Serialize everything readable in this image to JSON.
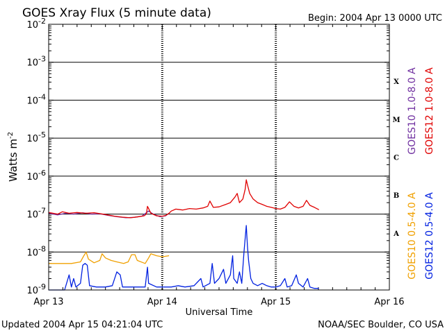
{
  "chart_data": {
    "type": "line",
    "title": "GOES Xray Flux (5 minute data)",
    "begin_label": "Begin:  2004 Apr 13 0000 UTC",
    "xlabel": "Universal Time",
    "ylabel": "Watts m",
    "ylabel_sup": "-2",
    "x_ticks": [
      "Apr 13",
      "Apr 14",
      "Apr 15",
      "Apr 16"
    ],
    "x_range_days": [
      0,
      3
    ],
    "y_scale": "log",
    "ylim": [
      1e-09,
      0.01
    ],
    "y_ticks": [
      {
        "base": "10",
        "exp": "-2"
      },
      {
        "base": "10",
        "exp": "-3"
      },
      {
        "base": "10",
        "exp": "-4"
      },
      {
        "base": "10",
        "exp": "-5"
      },
      {
        "base": "10",
        "exp": "-6"
      },
      {
        "base": "10",
        "exp": "-7"
      },
      {
        "base": "10",
        "exp": "-8"
      },
      {
        "base": "10",
        "exp": "-9"
      }
    ],
    "flare_classes": [
      "X",
      "M",
      "C",
      "B",
      "A"
    ],
    "grid": true,
    "legend_placement": "right",
    "series": [
      {
        "name": "GOES10 1.0-8.0 A",
        "color": "#7030a0",
        "points": [
          [
            0.0,
            1.05e-07
          ],
          [
            0.08,
            9.5e-08
          ],
          [
            0.15,
            1.05e-07
          ],
          [
            0.22,
            1e-07
          ],
          [
            0.3,
            1.08e-07
          ],
          [
            0.38,
            1e-07
          ],
          [
            0.45,
            1.02e-07
          ],
          [
            0.52,
            9.3e-08
          ],
          [
            0.6,
            8.5e-08
          ],
          [
            0.68,
            8e-08
          ],
          [
            0.75,
            8.2e-08
          ],
          [
            0.82,
            8.8e-08
          ],
          [
            0.88,
            1.2e-07
          ],
          [
            0.92,
            1e-07
          ],
          [
            0.98,
            8.5e-08
          ],
          [
            1.03,
            9e-08
          ],
          [
            1.06,
            1.05e-07
          ]
        ]
      },
      {
        "name": "GOES12 1.0-8.0 A",
        "color": "#e00000",
        "points": [
          [
            0.0,
            1.1e-07
          ],
          [
            0.08,
            1e-07
          ],
          [
            0.12,
            1.15e-07
          ],
          [
            0.18,
            1.05e-07
          ],
          [
            0.25,
            1.1e-07
          ],
          [
            0.32,
            1.05e-07
          ],
          [
            0.4,
            1.08e-07
          ],
          [
            0.46,
            1.02e-07
          ],
          [
            0.52,
            9.5e-08
          ],
          [
            0.58,
            8.8e-08
          ],
          [
            0.65,
            8.3e-08
          ],
          [
            0.72,
            8e-08
          ],
          [
            0.78,
            8.4e-08
          ],
          [
            0.84,
            9e-08
          ],
          [
            0.86,
            1e-07
          ],
          [
            0.87,
            1.6e-07
          ],
          [
            0.88,
            1.4e-07
          ],
          [
            0.9,
            1.05e-07
          ],
          [
            0.95,
            9e-08
          ],
          [
            1.0,
            8.8e-08
          ],
          [
            1.03,
            9.2e-08
          ],
          [
            1.06,
            1.05e-07
          ],
          [
            1.08,
            1.2e-07
          ],
          [
            1.12,
            1.35e-07
          ],
          [
            1.18,
            1.28e-07
          ],
          [
            1.24,
            1.4e-07
          ],
          [
            1.3,
            1.35e-07
          ],
          [
            1.36,
            1.45e-07
          ],
          [
            1.4,
            1.6e-07
          ],
          [
            1.42,
            2.2e-07
          ],
          [
            1.45,
            1.5e-07
          ],
          [
            1.5,
            1.55e-07
          ],
          [
            1.56,
            1.8e-07
          ],
          [
            1.6,
            2e-07
          ],
          [
            1.64,
            2.8e-07
          ],
          [
            1.66,
            3.5e-07
          ],
          [
            1.68,
            2e-07
          ],
          [
            1.71,
            2.5e-07
          ],
          [
            1.73,
            4.5e-07
          ],
          [
            1.74,
            8e-07
          ],
          [
            1.75,
            6e-07
          ],
          [
            1.77,
            3.5e-07
          ],
          [
            1.8,
            2.5e-07
          ],
          [
            1.84,
            2e-07
          ],
          [
            1.88,
            1.8e-07
          ],
          [
            1.92,
            1.6e-07
          ],
          [
            1.96,
            1.5e-07
          ],
          [
            2.0,
            1.4e-07
          ],
          [
            2.04,
            1.35e-07
          ],
          [
            2.08,
            1.5e-07
          ],
          [
            2.12,
            2.1e-07
          ],
          [
            2.16,
            1.6e-07
          ],
          [
            2.2,
            1.45e-07
          ],
          [
            2.24,
            1.6e-07
          ],
          [
            2.27,
            2.3e-07
          ],
          [
            2.3,
            1.7e-07
          ],
          [
            2.34,
            1.5e-07
          ],
          [
            2.38,
            1.3e-07
          ]
        ]
      },
      {
        "name": "GOES10 0.5-4.0 A",
        "color": "#f0a000",
        "points": [
          [
            0.0,
            5e-09
          ],
          [
            0.2,
            5e-09
          ],
          [
            0.28,
            5.5e-09
          ],
          [
            0.31,
            8e-09
          ],
          [
            0.33,
            1e-08
          ],
          [
            0.35,
            6.5e-09
          ],
          [
            0.4,
            5.2e-09
          ],
          [
            0.45,
            6e-09
          ],
          [
            0.47,
            9e-09
          ],
          [
            0.5,
            7e-09
          ],
          [
            0.55,
            6e-09
          ],
          [
            0.6,
            5.5e-09
          ],
          [
            0.66,
            5e-09
          ],
          [
            0.7,
            5.5e-09
          ],
          [
            0.73,
            8.5e-09
          ],
          [
            0.76,
            8.5e-09
          ],
          [
            0.78,
            6e-09
          ],
          [
            0.85,
            5e-09
          ],
          [
            0.88,
            7e-09
          ],
          [
            0.9,
            9e-09
          ],
          [
            0.95,
            8e-09
          ],
          [
            1.0,
            7.5e-09
          ],
          [
            1.06,
            8e-09
          ]
        ]
      },
      {
        "name": "GOES12 0.5-4.0 A",
        "color": "#0020e0",
        "points": [
          [
            0.0,
            1e-09
          ],
          [
            0.1,
            1e-09
          ],
          [
            0.14,
            1e-09
          ],
          [
            0.18,
            2.5e-09
          ],
          [
            0.2,
            1.2e-09
          ],
          [
            0.22,
            2e-09
          ],
          [
            0.24,
            1.2e-09
          ],
          [
            0.28,
            1.5e-09
          ],
          [
            0.3,
            4.5e-09
          ],
          [
            0.32,
            5e-09
          ],
          [
            0.34,
            4.5e-09
          ],
          [
            0.36,
            1.3e-09
          ],
          [
            0.42,
            1.2e-09
          ],
          [
            0.5,
            1.2e-09
          ],
          [
            0.56,
            1.3e-09
          ],
          [
            0.6,
            3e-09
          ],
          [
            0.63,
            2.5e-09
          ],
          [
            0.65,
            1.2e-09
          ],
          [
            0.75,
            1.2e-09
          ],
          [
            0.85,
            1.2e-09
          ],
          [
            0.87,
            4e-09
          ],
          [
            0.88,
            1.5e-09
          ],
          [
            0.95,
            1.2e-09
          ],
          [
            1.02,
            1.2e-09
          ],
          [
            1.08,
            1.2e-09
          ],
          [
            1.14,
            1.3e-09
          ],
          [
            1.2,
            1.2e-09
          ],
          [
            1.28,
            1.3e-09
          ],
          [
            1.34,
            2e-09
          ],
          [
            1.36,
            1.2e-09
          ],
          [
            1.42,
            1.5e-09
          ],
          [
            1.44,
            5e-09
          ],
          [
            1.46,
            1.5e-09
          ],
          [
            1.5,
            2e-09
          ],
          [
            1.54,
            3.5e-09
          ],
          [
            1.56,
            1.5e-09
          ],
          [
            1.6,
            2.5e-09
          ],
          [
            1.62,
            8e-09
          ],
          [
            1.63,
            2e-09
          ],
          [
            1.66,
            1.5e-09
          ],
          [
            1.68,
            3e-09
          ],
          [
            1.7,
            1.5e-09
          ],
          [
            1.72,
            1e-08
          ],
          [
            1.74,
            5e-08
          ],
          [
            1.75,
            1.5e-08
          ],
          [
            1.76,
            6e-09
          ],
          [
            1.78,
            2e-09
          ],
          [
            1.8,
            1.5e-09
          ],
          [
            1.84,
            1.3e-09
          ],
          [
            1.88,
            1.5e-09
          ],
          [
            1.92,
            1.3e-09
          ],
          [
            1.96,
            1.2e-09
          ],
          [
            2.0,
            1.2e-09
          ],
          [
            2.04,
            1.3e-09
          ],
          [
            2.08,
            2e-09
          ],
          [
            2.1,
            1.2e-09
          ],
          [
            2.14,
            1.3e-09
          ],
          [
            2.18,
            2.5e-09
          ],
          [
            2.2,
            1.5e-09
          ],
          [
            2.24,
            1.2e-09
          ],
          [
            2.28,
            2e-09
          ],
          [
            2.3,
            1.2e-09
          ],
          [
            2.34,
            1.1e-09
          ],
          [
            2.38,
            1.1e-09
          ]
        ]
      }
    ]
  },
  "footer": {
    "updated": "Updated 2004 Apr 15 04:21:04 UTC",
    "credit": "NOAA/SEC Boulder, CO USA"
  }
}
